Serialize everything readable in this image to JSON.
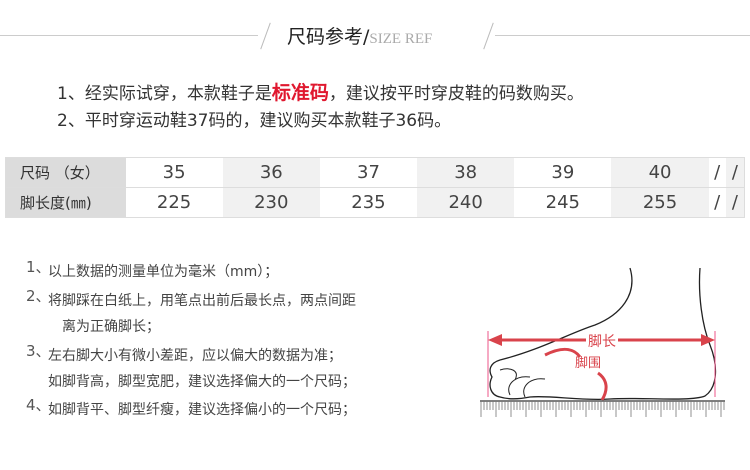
{
  "header": {
    "title_cn": "尺码参考/",
    "title_en": "SIZE REF"
  },
  "intro": {
    "line1_pre": "1、经实际试穿，本款鞋子是",
    "line1_highlight": "标准码",
    "line1_post": "，建议按平时穿皮鞋的码数购买。",
    "line2": "2、平时穿运动鞋37码的，建议购买本款鞋子36码。",
    "highlight_color": "#e0182f"
  },
  "size_table": {
    "rows": [
      {
        "label": "尺码 （女）",
        "values": [
          "35",
          "36",
          "37",
          "38",
          "39",
          "40",
          "/",
          "/"
        ]
      },
      {
        "label": "脚长度(㎜)",
        "values": [
          "225",
          "230",
          "235",
          "240",
          "245",
          "255",
          "/",
          "/"
        ]
      }
    ]
  },
  "notes": [
    {
      "num": "1、",
      "lines": [
        "以上数据的测量单位为毫米（mm）；"
      ]
    },
    {
      "num": "2、",
      "lines": [
        "将脚踩在白纸上，用笔点出前后最长点，两点间距",
        "离为正确脚长；"
      ]
    },
    {
      "num": "3、",
      "lines": [
        "左右脚大小有微小差距，应以偏大的数据为准；",
        "如脚背高，脚型宽肥，建议选择偏大的一个尺码；"
      ]
    },
    {
      "num": "4、",
      "lines": [
        "如脚背平、脚型纤瘦，建议选择偏小的一个尺码；"
      ]
    }
  ],
  "diagram": {
    "length_label": "脚长",
    "girth_label": "脚围",
    "accent": "#d9434b"
  }
}
